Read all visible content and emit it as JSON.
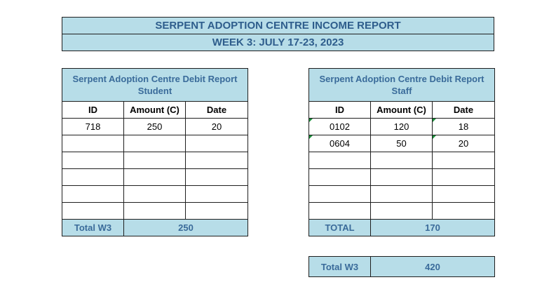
{
  "report": {
    "title": "SERPENT ADOPTION CENTRE INCOME REPORT",
    "week": "WEEK 3: JULY 17-23, 2023"
  },
  "student_table": {
    "title_line1": "Serpent Adoption Centre Debit Report",
    "title_line2": "Student",
    "columns": [
      "ID",
      "Amount (C)",
      "Date"
    ],
    "rows": [
      [
        "718",
        "250",
        "20"
      ],
      [
        "",
        "",
        ""
      ],
      [
        "",
        "",
        ""
      ],
      [
        "",
        "",
        ""
      ],
      [
        "",
        "",
        ""
      ],
      [
        "",
        "",
        ""
      ]
    ],
    "total_label": "Total W3",
    "total_value": "250"
  },
  "staff_table": {
    "title_line1": "Serpent Adoption Centre Debit Report",
    "title_line2": "Staff",
    "columns": [
      "ID",
      "Amount (C)",
      "Date"
    ],
    "rows": [
      [
        "0102",
        "120",
        "18"
      ],
      [
        "0604",
        "50",
        "20"
      ],
      [
        "",
        "",
        ""
      ],
      [
        "",
        "",
        ""
      ],
      [
        "",
        "",
        ""
      ],
      [
        "",
        "",
        ""
      ]
    ],
    "total_label": "TOTAL",
    "total_value": "170"
  },
  "grand_total": {
    "label": "Total W3",
    "value": "420"
  },
  "colors": {
    "header_fill": "#b7dde8",
    "header_text": "#2e5d8c",
    "error_indicator": "#1a8f3a"
  }
}
